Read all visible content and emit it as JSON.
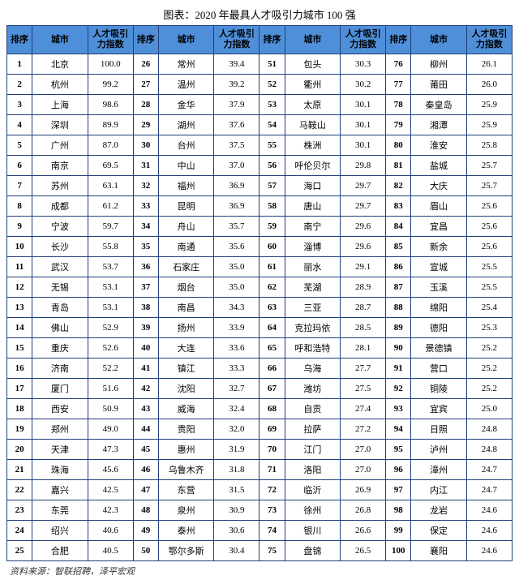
{
  "title": "图表：2020 年最具人才吸引力城市 100 强",
  "source": "资料来源：智联招聘，泽平宏观",
  "headers": {
    "rank": "排序",
    "city": "城市",
    "score": "人才吸引力指数"
  },
  "rows": [
    {
      "rank": 1,
      "city": "北京",
      "score": "100.0"
    },
    {
      "rank": 2,
      "city": "杭州",
      "score": "99.2"
    },
    {
      "rank": 3,
      "city": "上海",
      "score": "98.6"
    },
    {
      "rank": 4,
      "city": "深圳",
      "score": "89.9"
    },
    {
      "rank": 5,
      "city": "广州",
      "score": "87.0"
    },
    {
      "rank": 6,
      "city": "南京",
      "score": "69.5"
    },
    {
      "rank": 7,
      "city": "苏州",
      "score": "63.1"
    },
    {
      "rank": 8,
      "city": "成都",
      "score": "61.2"
    },
    {
      "rank": 9,
      "city": "宁波",
      "score": "59.7"
    },
    {
      "rank": 10,
      "city": "长沙",
      "score": "55.8"
    },
    {
      "rank": 11,
      "city": "武汉",
      "score": "53.7"
    },
    {
      "rank": 12,
      "city": "无锡",
      "score": "53.1"
    },
    {
      "rank": 13,
      "city": "青岛",
      "score": "53.1"
    },
    {
      "rank": 14,
      "city": "佛山",
      "score": "52.9"
    },
    {
      "rank": 15,
      "city": "重庆",
      "score": "52.6"
    },
    {
      "rank": 16,
      "city": "济南",
      "score": "52.2"
    },
    {
      "rank": 17,
      "city": "厦门",
      "score": "51.6"
    },
    {
      "rank": 18,
      "city": "西安",
      "score": "50.9"
    },
    {
      "rank": 19,
      "city": "郑州",
      "score": "49.0"
    },
    {
      "rank": 20,
      "city": "天津",
      "score": "47.3"
    },
    {
      "rank": 21,
      "city": "珠海",
      "score": "45.6"
    },
    {
      "rank": 22,
      "city": "嘉兴",
      "score": "42.5"
    },
    {
      "rank": 23,
      "city": "东莞",
      "score": "42.3"
    },
    {
      "rank": 24,
      "city": "绍兴",
      "score": "40.6"
    },
    {
      "rank": 25,
      "city": "合肥",
      "score": "40.5"
    },
    {
      "rank": 26,
      "city": "常州",
      "score": "39.4"
    },
    {
      "rank": 27,
      "city": "温州",
      "score": "39.2"
    },
    {
      "rank": 28,
      "city": "金华",
      "score": "37.9"
    },
    {
      "rank": 29,
      "city": "湖州",
      "score": "37.6"
    },
    {
      "rank": 30,
      "city": "台州",
      "score": "37.5"
    },
    {
      "rank": 31,
      "city": "中山",
      "score": "37.0"
    },
    {
      "rank": 32,
      "city": "福州",
      "score": "36.9"
    },
    {
      "rank": 33,
      "city": "昆明",
      "score": "36.9"
    },
    {
      "rank": 34,
      "city": "舟山",
      "score": "35.7"
    },
    {
      "rank": 35,
      "city": "南通",
      "score": "35.6"
    },
    {
      "rank": 36,
      "city": "石家庄",
      "score": "35.0"
    },
    {
      "rank": 37,
      "city": "烟台",
      "score": "35.0"
    },
    {
      "rank": 38,
      "city": "南昌",
      "score": "34.3"
    },
    {
      "rank": 39,
      "city": "扬州",
      "score": "33.9"
    },
    {
      "rank": 40,
      "city": "大连",
      "score": "33.6"
    },
    {
      "rank": 41,
      "city": "镇江",
      "score": "33.3"
    },
    {
      "rank": 42,
      "city": "沈阳",
      "score": "32.7"
    },
    {
      "rank": 43,
      "city": "威海",
      "score": "32.4"
    },
    {
      "rank": 44,
      "city": "贵阳",
      "score": "32.0"
    },
    {
      "rank": 45,
      "city": "惠州",
      "score": "31.9"
    },
    {
      "rank": 46,
      "city": "乌鲁木齐",
      "score": "31.8"
    },
    {
      "rank": 47,
      "city": "东营",
      "score": "31.5"
    },
    {
      "rank": 48,
      "city": "泉州",
      "score": "30.9"
    },
    {
      "rank": 49,
      "city": "泰州",
      "score": "30.6"
    },
    {
      "rank": 50,
      "city": "鄂尔多斯",
      "score": "30.4"
    },
    {
      "rank": 51,
      "city": "包头",
      "score": "30.3"
    },
    {
      "rank": 52,
      "city": "衢州",
      "score": "30.2"
    },
    {
      "rank": 53,
      "city": "太原",
      "score": "30.1"
    },
    {
      "rank": 54,
      "city": "马鞍山",
      "score": "30.1"
    },
    {
      "rank": 55,
      "city": "株洲",
      "score": "30.1"
    },
    {
      "rank": 56,
      "city": "呼伦贝尔",
      "score": "29.8"
    },
    {
      "rank": 57,
      "city": "海口",
      "score": "29.7"
    },
    {
      "rank": 58,
      "city": "唐山",
      "score": "29.7"
    },
    {
      "rank": 59,
      "city": "南宁",
      "score": "29.6"
    },
    {
      "rank": 60,
      "city": "淄博",
      "score": "29.6"
    },
    {
      "rank": 61,
      "city": "丽水",
      "score": "29.1"
    },
    {
      "rank": 62,
      "city": "芜湖",
      "score": "28.9"
    },
    {
      "rank": 63,
      "city": "三亚",
      "score": "28.7"
    },
    {
      "rank": 64,
      "city": "克拉玛依",
      "score": "28.5"
    },
    {
      "rank": 65,
      "city": "呼和浩特",
      "score": "28.1"
    },
    {
      "rank": 66,
      "city": "乌海",
      "score": "27.7"
    },
    {
      "rank": 67,
      "city": "潍坊",
      "score": "27.5"
    },
    {
      "rank": 68,
      "city": "自贡",
      "score": "27.4"
    },
    {
      "rank": 69,
      "city": "拉萨",
      "score": "27.2"
    },
    {
      "rank": 70,
      "city": "江门",
      "score": "27.0"
    },
    {
      "rank": 71,
      "city": "洛阳",
      "score": "27.0"
    },
    {
      "rank": 72,
      "city": "临沂",
      "score": "26.9"
    },
    {
      "rank": 73,
      "city": "徐州",
      "score": "26.8"
    },
    {
      "rank": 74,
      "city": "银川",
      "score": "26.6"
    },
    {
      "rank": 75,
      "city": "盘锦",
      "score": "26.5"
    },
    {
      "rank": 76,
      "city": "柳州",
      "score": "26.1"
    },
    {
      "rank": 77,
      "city": "莆田",
      "score": "26.0"
    },
    {
      "rank": 78,
      "city": "秦皇岛",
      "score": "25.9"
    },
    {
      "rank": 79,
      "city": "湘潭",
      "score": "25.9"
    },
    {
      "rank": 80,
      "city": "淮安",
      "score": "25.8"
    },
    {
      "rank": 81,
      "city": "盐城",
      "score": "25.7"
    },
    {
      "rank": 82,
      "city": "大庆",
      "score": "25.7"
    },
    {
      "rank": 83,
      "city": "眉山",
      "score": "25.6"
    },
    {
      "rank": 84,
      "city": "宜昌",
      "score": "25.6"
    },
    {
      "rank": 85,
      "city": "新余",
      "score": "25.6"
    },
    {
      "rank": 86,
      "city": "宣城",
      "score": "25.5"
    },
    {
      "rank": 87,
      "city": "玉溪",
      "score": "25.5"
    },
    {
      "rank": 88,
      "city": "绵阳",
      "score": "25.4"
    },
    {
      "rank": 89,
      "city": "德阳",
      "score": "25.3"
    },
    {
      "rank": 90,
      "city": "景德镇",
      "score": "25.2"
    },
    {
      "rank": 91,
      "city": "营口",
      "score": "25.2"
    },
    {
      "rank": 92,
      "city": "铜陵",
      "score": "25.2"
    },
    {
      "rank": 93,
      "city": "宜宾",
      "score": "25.0"
    },
    {
      "rank": 94,
      "city": "日照",
      "score": "24.8"
    },
    {
      "rank": 95,
      "city": "泸州",
      "score": "24.8"
    },
    {
      "rank": 96,
      "city": "漳州",
      "score": "24.7"
    },
    {
      "rank": 97,
      "city": "内江",
      "score": "24.7"
    },
    {
      "rank": 98,
      "city": "龙岩",
      "score": "24.6"
    },
    {
      "rank": 99,
      "city": "保定",
      "score": "24.6"
    },
    {
      "rank": 100,
      "city": "襄阳",
      "score": "24.6"
    }
  ]
}
